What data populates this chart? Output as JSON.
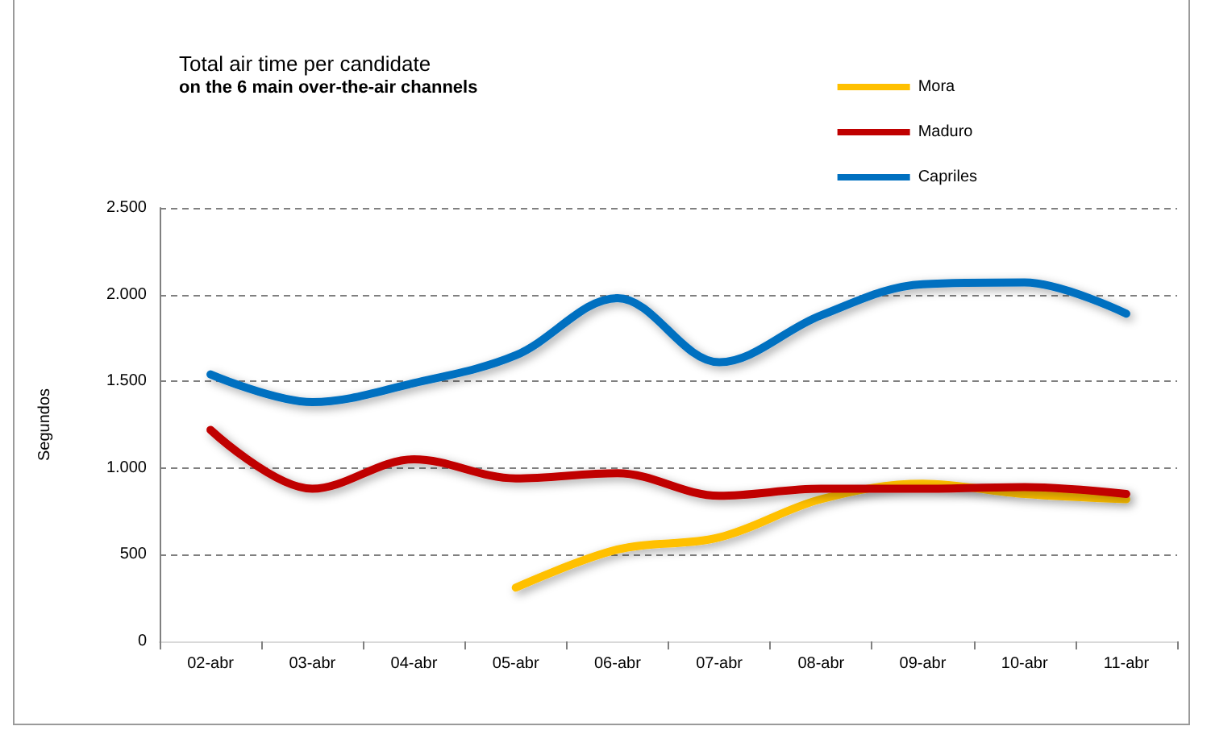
{
  "chart_data": {
    "type": "line",
    "title": "Total air time per candidate",
    "subtitle": "on the 6 main over-the-air channels",
    "ylabel": "Segundos",
    "categories": [
      "02-abr",
      "03-abr",
      "04-abr",
      "05-abr",
      "06-abr",
      "07-abr",
      "08-abr",
      "09-abr",
      "10-abr",
      "11-abr"
    ],
    "series": [
      {
        "name": "Mora",
        "color": "#ffc000",
        "values": [
          null,
          null,
          null,
          310,
          530,
          600,
          820,
          910,
          850,
          820
        ]
      },
      {
        "name": "Maduro",
        "color": "#c00000",
        "values": [
          1220,
          880,
          1050,
          940,
          970,
          840,
          880,
          880,
          890,
          850
        ]
      },
      {
        "name": "Capriles",
        "color": "#0070c0",
        "values": [
          1540,
          1380,
          1490,
          1650,
          1980,
          1610,
          1880,
          2060,
          2070,
          1890
        ]
      }
    ],
    "ylim": [
      0,
      2500
    ],
    "yticks": [
      0,
      500,
      {
        "value": 1000,
        "label": "1.000"
      },
      {
        "value": 1500,
        "label": "1.500"
      },
      {
        "value": 2000,
        "label": "2.000"
      },
      {
        "value": 2500,
        "label": "2.500"
      }
    ],
    "grid": "y",
    "legend": "top right",
    "marker": "none",
    "line_style": "solid"
  }
}
